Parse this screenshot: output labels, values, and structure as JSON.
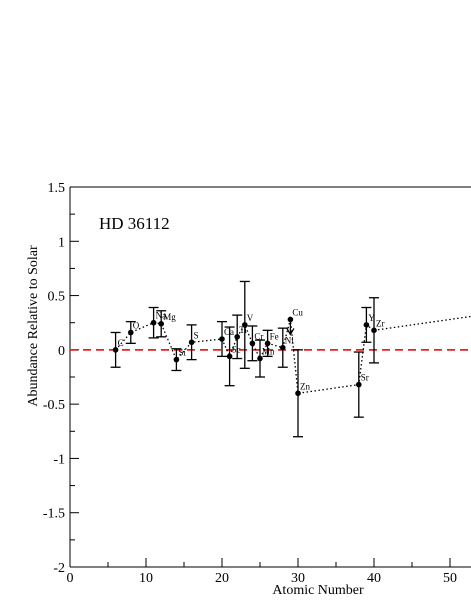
{
  "chart_data": {
    "type": "scatter",
    "annotation": "HD 36112",
    "xlabel": "Atomic Number",
    "ylabel": "Abundance Relative to Solar",
    "xlim": [
      0,
      55
    ],
    "ylim": [
      -2,
      1.5
    ],
    "x_ticks": [
      0,
      10,
      20,
      30,
      40,
      50
    ],
    "y_ticks": [
      1.5,
      1,
      0.5,
      0,
      -0.5,
      -1,
      -1.5,
      -2
    ],
    "x_tick_labels": [
      "0",
      "10",
      "20",
      "30",
      "40",
      "50"
    ],
    "y_tick_labels": [
      "1.5",
      "1",
      "0.5",
      "0",
      "-0.5",
      "-1",
      "-1.5",
      "-2"
    ],
    "reference_line": {
      "y": 0,
      "style": "dashed",
      "color": "#e8201f"
    },
    "connector_style": "dotted",
    "series": [
      {
        "points": [
          {
            "label": "C",
            "x": 6,
            "y": 0.0,
            "err_low": 0.16,
            "err_high": 0.16
          },
          {
            "label": "O",
            "x": 8,
            "y": 0.16,
            "err_low": 0.1,
            "err_high": 0.1
          },
          {
            "label": "Na",
            "x": 11,
            "y": 0.25,
            "err_low": 0.14,
            "err_high": 0.14
          },
          {
            "label": "Mg",
            "x": 12,
            "y": 0.24,
            "err_low": 0.12,
            "err_high": 0.12
          },
          {
            "label": "Si",
            "x": 14,
            "y": -0.09,
            "err_low": 0.1,
            "err_high": 0.1
          },
          {
            "label": "S",
            "x": 16,
            "y": 0.07,
            "err_low": 0.16,
            "err_high": 0.16
          },
          {
            "label": "Ca",
            "x": 20,
            "y": 0.1,
            "err_low": 0.16,
            "err_high": 0.16
          },
          {
            "label": "Sc",
            "x": 21,
            "y": -0.06,
            "err_low": 0.27,
            "err_high": 0.27
          },
          {
            "label": "Ti",
            "x": 22,
            "y": 0.12,
            "err_low": 0.2,
            "err_high": 0.2
          },
          {
            "label": "V",
            "x": 23,
            "y": 0.23,
            "err_low": 0.4,
            "err_high": 0.4
          },
          {
            "label": "Cr",
            "x": 24,
            "y": 0.06,
            "err_low": 0.16,
            "err_high": 0.16
          },
          {
            "label": "Mn",
            "x": 25,
            "y": -0.08,
            "err_low": 0.17,
            "err_high": 0.17
          },
          {
            "label": "Fe",
            "x": 26,
            "y": 0.06,
            "err_low": 0.12,
            "err_high": 0.12
          },
          {
            "label": "Ni",
            "x": 28,
            "y": 0.02,
            "err_low": 0.18,
            "err_high": 0.18
          },
          {
            "label": "Cu",
            "x": 29,
            "y": 0.28,
            "err_low": 0.0,
            "err_high": 0.0,
            "upper_limit": true
          },
          {
            "label": "Zn",
            "x": 30,
            "y": -0.4,
            "err_low": 0.4,
            "err_high": 0.4
          },
          {
            "label": "Sr",
            "x": 38,
            "y": -0.32,
            "err_low": 0.3,
            "err_high": 0.3
          },
          {
            "label": "Y",
            "x": 39,
            "y": 0.23,
            "err_low": 0.16,
            "err_high": 0.16
          },
          {
            "label": "Zr",
            "x": 40,
            "y": 0.18,
            "err_low": 0.3,
            "err_high": 0.3
          }
        ],
        "trend_to_edge": {
          "from_x": 40,
          "from_y": 0.18,
          "to_x": 55,
          "to_y": 0.33
        }
      }
    ]
  }
}
